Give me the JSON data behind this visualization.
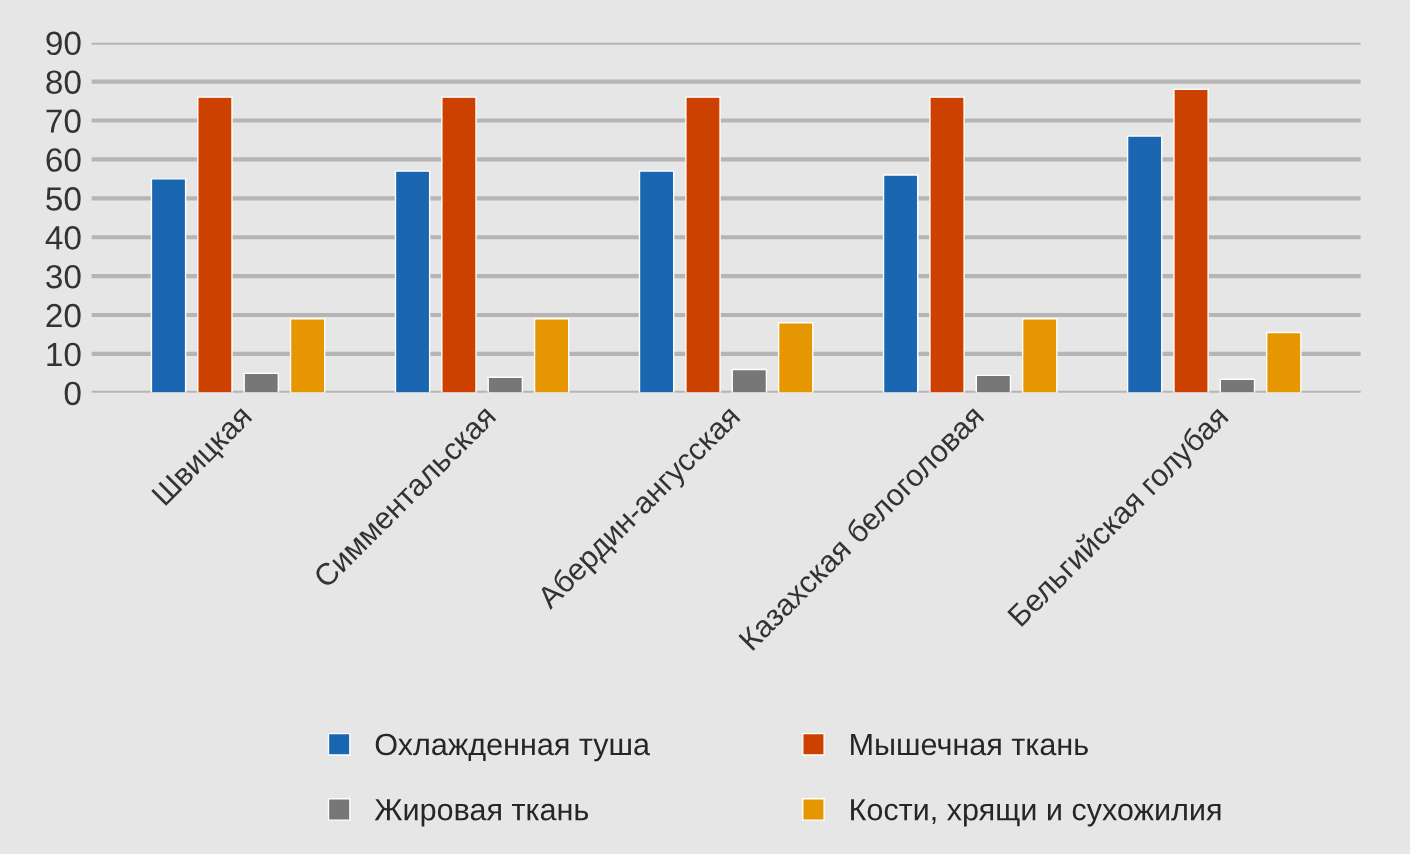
{
  "chart_data": {
    "type": "bar",
    "categories": [
      "Швицкая",
      "Симментальская",
      "Абердин-ангусская",
      "Казахская белоголовая",
      "Бельгийская голубая"
    ],
    "series": [
      {
        "name": "Охлажденная туша",
        "color": "#1a66b0",
        "values": [
          55,
          57,
          57,
          56,
          66
        ]
      },
      {
        "name": "Мышечная ткань",
        "color": "#cc4100",
        "values": [
          76,
          76,
          76,
          76,
          78
        ]
      },
      {
        "name": "Жировая ткань",
        "color": "#777777",
        "values": [
          5,
          4,
          6,
          4.5,
          3.5
        ]
      },
      {
        "name": "Кости, хрящи и сухожилия",
        "color": "#e59600",
        "values": [
          19,
          19,
          18,
          19,
          15.5
        ]
      }
    ],
    "ylim": [
      0,
      90
    ],
    "yticks": [
      0,
      10,
      20,
      30,
      40,
      50,
      60,
      70,
      80,
      90
    ],
    "grid": "y",
    "legend": "bottom"
  }
}
